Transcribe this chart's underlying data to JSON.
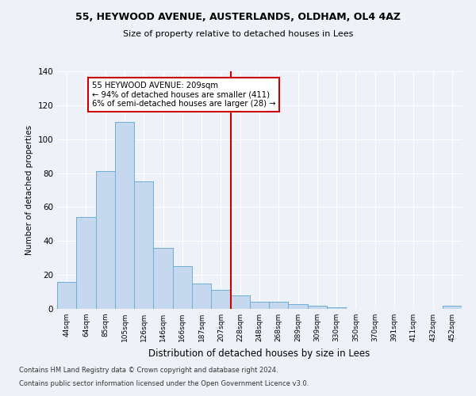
{
  "title1": "55, HEYWOOD AVENUE, AUSTERLANDS, OLDHAM, OL4 4AZ",
  "title2": "Size of property relative to detached houses in Lees",
  "xlabel": "Distribution of detached houses by size in Lees",
  "ylabel": "Number of detached properties",
  "categories": [
    "44sqm",
    "64sqm",
    "85sqm",
    "105sqm",
    "126sqm",
    "146sqm",
    "166sqm",
    "187sqm",
    "207sqm",
    "228sqm",
    "248sqm",
    "268sqm",
    "289sqm",
    "309sqm",
    "330sqm",
    "350sqm",
    "370sqm",
    "391sqm",
    "411sqm",
    "432sqm",
    "452sqm"
  ],
  "values": [
    16,
    54,
    81,
    110,
    75,
    36,
    25,
    15,
    11,
    8,
    4,
    4,
    3,
    2,
    1,
    0,
    0,
    0,
    0,
    0,
    2
  ],
  "bar_color": "#c5d8ed",
  "bar_edge_color": "#6aaed6",
  "vline_x_index": 8,
  "vline_color": "#cc0000",
  "annotation_line1": "55 HEYWOOD AVENUE: 209sqm",
  "annotation_line2": "← 94% of detached houses are smaller (411)",
  "annotation_line3": "6% of semi-detached houses are larger (28) →",
  "annotation_box_color": "#ffffff",
  "annotation_box_edge": "#cc0000",
  "ylim": [
    0,
    140
  ],
  "yticks": [
    0,
    20,
    40,
    60,
    80,
    100,
    120,
    140
  ],
  "background_color": "#eef2f8",
  "grid_color": "#ffffff",
  "footer1": "Contains HM Land Registry data © Crown copyright and database right 2024.",
  "footer2": "Contains public sector information licensed under the Open Government Licence v3.0."
}
